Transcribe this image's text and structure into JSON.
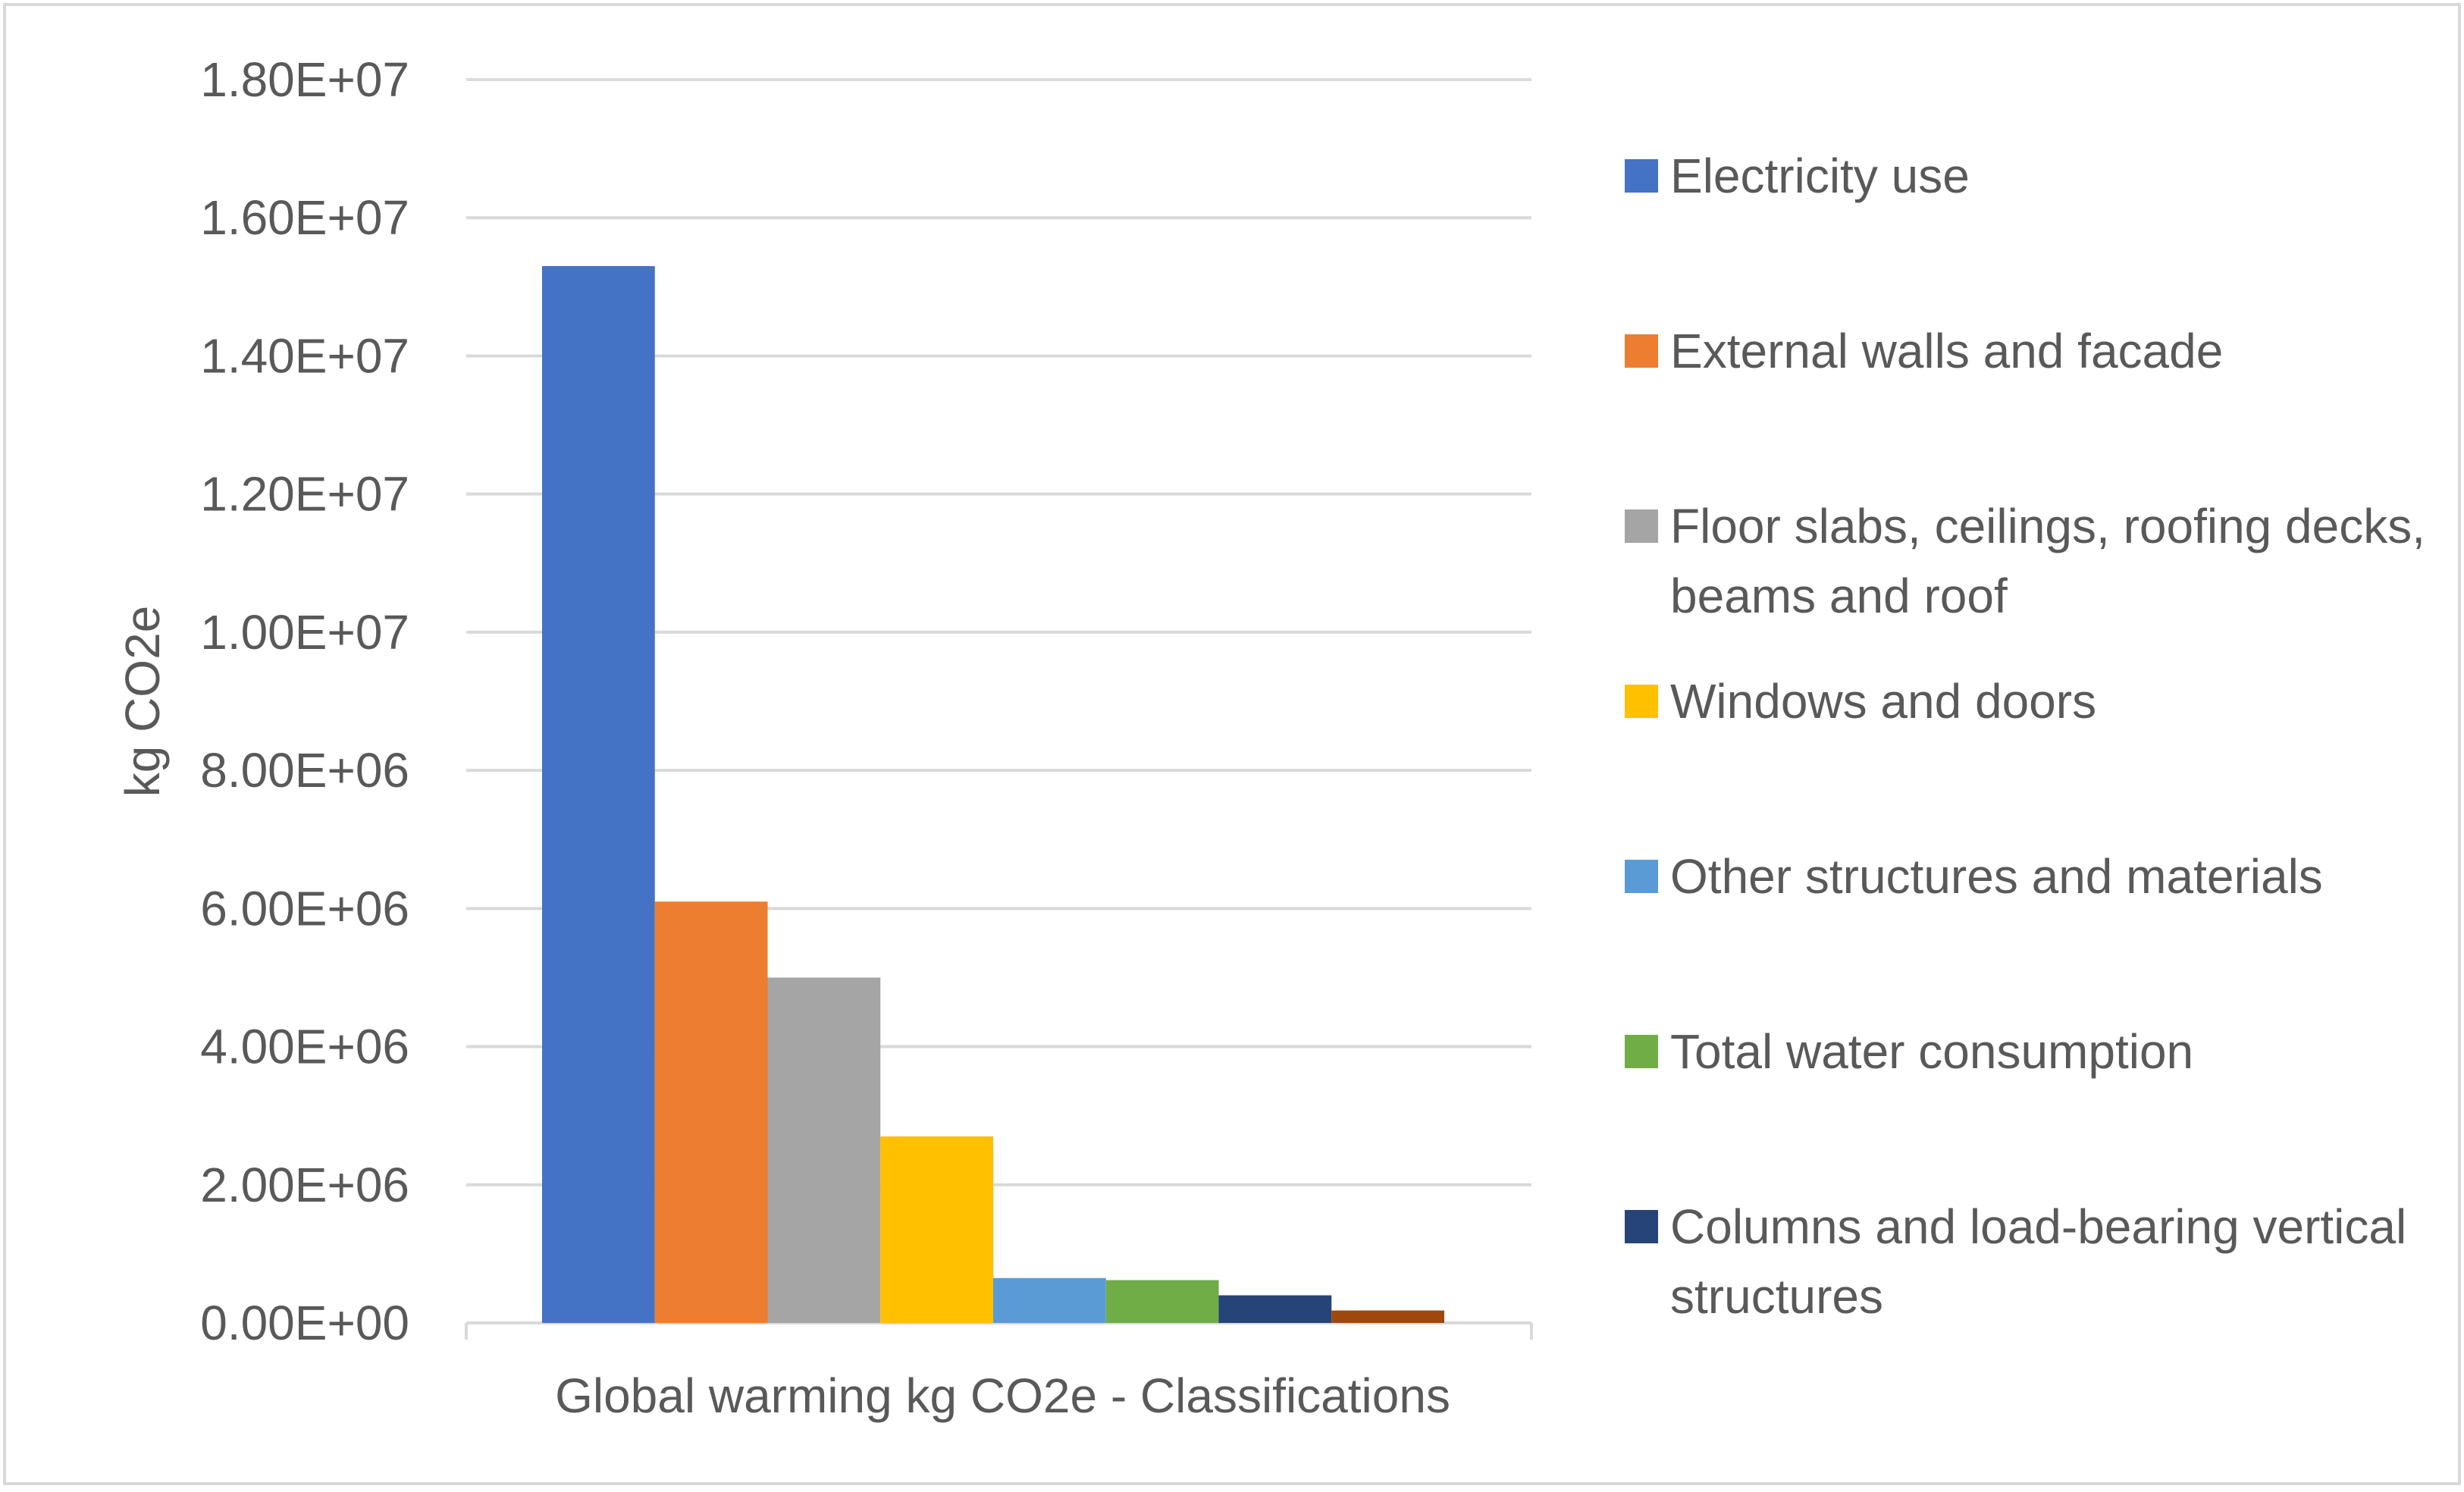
{
  "chart_data": {
    "type": "bar",
    "title": "",
    "xlabel": "Global warming kg CO2e - Classifications",
    "ylabel": "kg CO2e",
    "ylim": [
      0,
      18000000
    ],
    "yticks": [
      0,
      2000000,
      4000000,
      6000000,
      8000000,
      10000000,
      12000000,
      14000000,
      16000000,
      18000000
    ],
    "ytick_labels": [
      "0.00E+00",
      "2.00E+06",
      "4.00E+06",
      "6.00E+06",
      "8.00E+06",
      "1.00E+07",
      "1.20E+07",
      "1.40E+07",
      "1.60E+07",
      "1.80E+07"
    ],
    "categories": [
      "Global warming kg CO2e - Classifications"
    ],
    "grid": true,
    "legend_position": "right",
    "series": [
      {
        "name": "Electricity use",
        "color": "#4472C4",
        "values": [
          15300000
        ]
      },
      {
        "name": "External walls and facade",
        "color": "#ED7D31",
        "values": [
          6100000
        ]
      },
      {
        "name": "Floor slabs, ceilings, roofing decks, beams and roof",
        "color": "#A5A5A5",
        "values": [
          5000000
        ]
      },
      {
        "name": "Windows and doors",
        "color": "#FFC000",
        "values": [
          2700000
        ]
      },
      {
        "name": "Other structures and materials",
        "color": "#5B9BD5",
        "values": [
          650000
        ]
      },
      {
        "name": "Total water consumption",
        "color": "#70AD47",
        "values": [
          620000
        ]
      },
      {
        "name": "Columns and load-bearing vertical structures",
        "color": "#264478",
        "values": [
          400000
        ]
      },
      {
        "color": "#9E480E",
        "values": [
          180000
        ]
      }
    ]
  }
}
